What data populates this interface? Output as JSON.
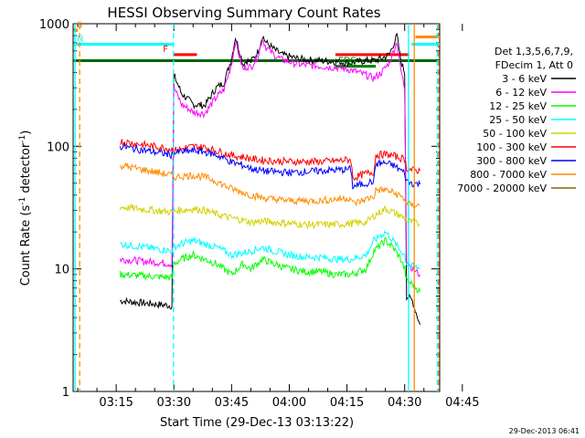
{
  "chart_data": {
    "type": "line",
    "title": "HESSI Observing Summary Count Rates",
    "xlabel": "Start Time (29-Dec-13 03:13:22)",
    "ylabel_main": "Count Rate (s",
    "ylabel_sup1": "-1",
    "ylabel_mid": " detector",
    "ylabel_sup2": "-1",
    "ylabel_end": ")",
    "timestamp": "29-Dec-2013 06:41",
    "yscale": "log",
    "ylim": [
      1,
      1000
    ],
    "xlim_minutes": [
      3.8,
      99.1
    ],
    "x_ticks": [
      {
        "label": "03:15",
        "minute": 15
      },
      {
        "label": "03:30",
        "minute": 30
      },
      {
        "label": "03:45",
        "minute": 45
      },
      {
        "label": "04:00",
        "minute": 60
      },
      {
        "label": "04:15",
        "minute": 75
      },
      {
        "label": "04:30",
        "minute": 90
      },
      {
        "label": "04:45",
        "minute": 105
      }
    ],
    "y_ticks": [
      {
        "label": "1",
        "value": 1
      },
      {
        "label": "10",
        "value": 10
      },
      {
        "label": "100",
        "value": 100
      },
      {
        "label": "1000",
        "value": 1000
      }
    ],
    "legend_header": [
      "Det 1,3,5,6,7,9,",
      "FDecim 1, Att 0"
    ],
    "legend_position": "right",
    "series": [
      {
        "name": "3 - 6 keV",
        "color": "#000000",
        "x": [
          16,
          29.5,
          30,
          32,
          35,
          38,
          41,
          43,
          45,
          46,
          48,
          49,
          50,
          52,
          53,
          54,
          56,
          58,
          60,
          62,
          64,
          66,
          68,
          70,
          72,
          74,
          76,
          78,
          80,
          82,
          84,
          86,
          88,
          89,
          90,
          90.5,
          92,
          94
        ],
        "y": [
          5.5,
          5.0,
          380,
          270,
          220,
          215,
          300,
          330,
          520,
          780,
          470,
          500,
          490,
          600,
          800,
          700,
          620,
          560,
          540,
          520,
          510,
          505,
          500,
          495,
          490,
          485,
          480,
          490,
          500,
          500,
          520,
          560,
          800,
          500,
          400,
          6,
          5.5,
          3.5
        ]
      },
      {
        "name": "6 - 12 keV",
        "color": "#ff00ff",
        "x": [
          16,
          29.5,
          30,
          32,
          35,
          38,
          41,
          43,
          45,
          46,
          48,
          49,
          50,
          52,
          53,
          54,
          56,
          58,
          60,
          62,
          64,
          66,
          68,
          70,
          72,
          74,
          76,
          78,
          80,
          82,
          84,
          86,
          88,
          89,
          90,
          90.5,
          92,
          94
        ],
        "y": [
          12,
          11,
          300,
          220,
          190,
          185,
          250,
          290,
          470,
          720,
          420,
          450,
          440,
          560,
          760,
          640,
          560,
          510,
          490,
          470,
          460,
          455,
          450,
          445,
          440,
          430,
          420,
          400,
          380,
          360,
          400,
          480,
          720,
          420,
          300,
          12,
          10,
          9
        ]
      },
      {
        "name": "12 - 25 keV",
        "color": "#00ff00",
        "x": [
          16,
          29.5,
          30,
          32,
          35,
          38,
          41,
          43,
          45,
          48,
          50,
          53,
          56,
          60,
          64,
          68,
          72,
          76,
          80,
          82,
          85,
          87,
          89,
          90,
          90.5,
          92,
          94
        ],
        "y": [
          9,
          8.5,
          11,
          12,
          13,
          12,
          11,
          10,
          9,
          11,
          10,
          12,
          11,
          10,
          9.5,
          9.5,
          9,
          9,
          10,
          14,
          17,
          15,
          12,
          10,
          8,
          7.5,
          6.5
        ]
      },
      {
        "name": "25 - 50 keV",
        "color": "#00ffff",
        "x": [
          16,
          29.5,
          30,
          32,
          35,
          38,
          41,
          43,
          45,
          48,
          50,
          53,
          56,
          60,
          64,
          68,
          72,
          76,
          80,
          82,
          85,
          87,
          89,
          90,
          90.5,
          92,
          94
        ],
        "y": [
          16,
          14,
          15,
          16,
          17,
          16,
          15,
          14,
          13,
          13.5,
          14,
          15,
          14,
          13,
          12.5,
          12.5,
          12,
          12,
          13,
          17,
          20,
          17,
          14,
          13,
          11,
          10.5,
          10
        ]
      },
      {
        "name": "50 - 100 keV",
        "color": "#d2d200",
        "x": [
          16,
          29.5,
          30,
          32,
          35,
          38,
          41,
          43,
          45,
          48,
          50,
          53,
          56,
          60,
          64,
          68,
          72,
          76,
          80,
          82,
          85,
          87,
          89,
          90,
          90.5,
          92,
          94
        ],
        "y": [
          32,
          29,
          30,
          30,
          31,
          30,
          28,
          27,
          26,
          25,
          24,
          24.5,
          24,
          23.5,
          23,
          23,
          23,
          23.5,
          24,
          27,
          31,
          29,
          27,
          26,
          25,
          24,
          23
        ]
      },
      {
        "name": "100 - 300 keV",
        "color": "#ff0000",
        "x": [
          16,
          29.5,
          30,
          32,
          35,
          38,
          41,
          43,
          45,
          48,
          50,
          53,
          56,
          60,
          64,
          68,
          72,
          76,
          76.5,
          80,
          82,
          82.5,
          85,
          87,
          89,
          90,
          90.5,
          92,
          94
        ],
        "y": [
          110,
          95,
          92,
          95,
          100,
          98,
          92,
          88,
          84,
          82,
          79,
          77,
          76,
          75,
          75,
          75,
          76,
          78,
          55,
          60,
          62,
          85,
          86,
          84,
          80,
          79,
          66,
          64,
          63
        ]
      },
      {
        "name": "300 - 800 keV",
        "color": "#0000ff",
        "x": [
          16,
          29.5,
          30,
          32,
          35,
          38,
          41,
          43,
          45,
          48,
          50,
          53,
          56,
          60,
          64,
          68,
          72,
          76,
          76.5,
          80,
          82,
          82.5,
          85,
          87,
          89,
          90,
          90.5,
          92,
          94
        ],
        "y": [
          100,
          85,
          88,
          90,
          92,
          90,
          85,
          80,
          74,
          70,
          66,
          63,
          62,
          61,
          62,
          63,
          64,
          65,
          47,
          50,
          52,
          72,
          73,
          70,
          64,
          60,
          52,
          50,
          49
        ]
      },
      {
        "name": "800 - 7000 keV",
        "color": "#ff8c00",
        "x": [
          16,
          29.5,
          30,
          32,
          35,
          38,
          41,
          43,
          45,
          48,
          50,
          53,
          56,
          60,
          64,
          68,
          72,
          76,
          76.5,
          80,
          82,
          82.5,
          85,
          87,
          89,
          90,
          90.5,
          92,
          94
        ],
        "y": [
          70,
          58,
          56,
          57,
          58,
          56,
          52,
          48,
          45,
          42,
          40,
          38,
          37,
          36,
          36,
          36,
          37,
          38,
          34,
          37,
          39,
          44,
          44,
          42,
          39,
          37,
          34,
          33,
          33
        ]
      },
      {
        "name": "7000 - 20000 keV",
        "color": "#8b6508",
        "x": [],
        "y": []
      }
    ],
    "flags": [
      {
        "label": "S",
        "color": "#ff8c00",
        "x_start": 4.0,
        "x_end": 5.0,
        "y": 880
      },
      {
        "label": "N",
        "color": "#00ffff",
        "x_start": 4.0,
        "x_end": 29.8,
        "y": 680
      },
      {
        "label": "F",
        "color": "#ff0000",
        "x_start": 30.0,
        "x_end": 36.0,
        "y": 560
      },
      {
        "label": "",
        "color": "#ff0000",
        "x_start": 72.0,
        "x_end": 91.2,
        "y": 560
      },
      {
        "label": "FDS",
        "color": "#008000",
        "x_start": 72.0,
        "x_end": 82.5,
        "y": 450
      },
      {
        "label": "",
        "color": "#006400",
        "x_start": 3.8,
        "x_end": 99.1,
        "y": 500
      },
      {
        "label": "",
        "color": "#00ffff",
        "x_start": 91.8,
        "x_end": 99.1,
        "y": 680
      },
      {
        "label": "",
        "color": "#ff8c00",
        "x_start": 92.8,
        "x_end": 99.1,
        "y": 780
      }
    ],
    "vlines": [
      {
        "x": 4.3,
        "color": "#00ffff",
        "style": "solid"
      },
      {
        "x": 5.5,
        "color": "#ff8c00",
        "style": "dashed"
      },
      {
        "x": 29.9,
        "color": "#00ffff",
        "style": "dashed"
      },
      {
        "x": 91.0,
        "color": "#00ffff",
        "style": "solid"
      },
      {
        "x": 92.5,
        "color": "#ff8c00",
        "style": "solid"
      },
      {
        "x": 98.8,
        "color": "#ff8c00",
        "style": "dashed"
      },
      {
        "x": 98.5,
        "color": "#00ffff",
        "style": "dashed"
      }
    ]
  }
}
